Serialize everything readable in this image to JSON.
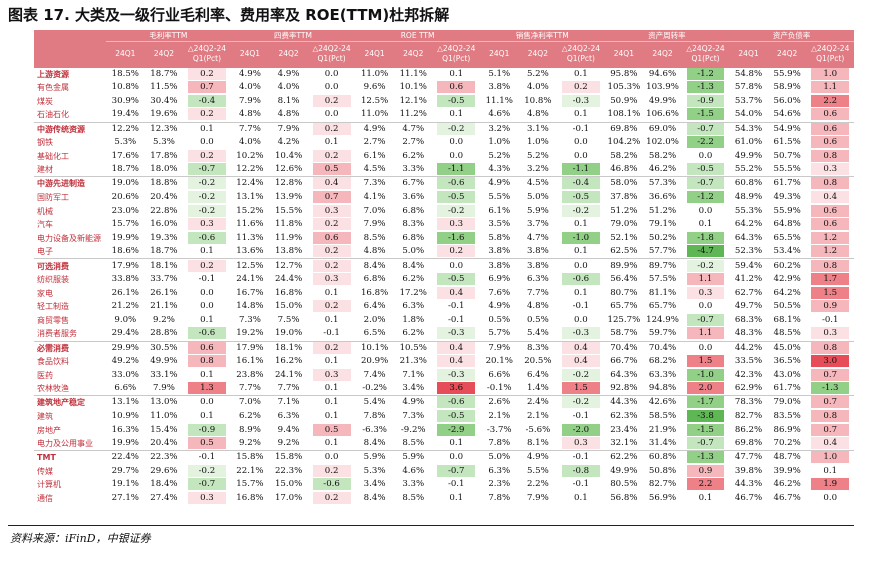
{
  "title": "图表 17. 大类及一级行业毛利率、费用率及 ROE(TTM)杜邦拆解",
  "source": "资料来源：iFinD，中银证券",
  "header": {
    "groups": [
      "毛利率TTM",
      "四费率TTM",
      "ROE TTM",
      "销售净利率TTM",
      "资产周转率",
      "资产负债率"
    ],
    "sub": [
      "24Q1",
      "24Q2",
      "△24Q2-24Q1(Pct)"
    ]
  },
  "sections": [
    {
      "rows": [
        {
          "label": "上游资源",
          "v": [
            "18.5%",
            "18.7%",
            "0.2",
            "4.9%",
            "4.9%",
            "0.0",
            "11.0%",
            "11.1%",
            "0.1",
            "5.1%",
            "5.2%",
            "0.1",
            "95.8%",
            "94.6%",
            "-1.2",
            "54.8%",
            "55.9%",
            "1.0"
          ]
        },
        {
          "label": "有色金属",
          "v": [
            "10.8%",
            "11.5%",
            "0.7",
            "4.0%",
            "4.0%",
            "0.0",
            "9.6%",
            "10.1%",
            "0.6",
            "3.8%",
            "4.0%",
            "0.2",
            "105.3%",
            "103.9%",
            "-1.3",
            "57.8%",
            "58.9%",
            "1.1"
          ]
        },
        {
          "label": "煤炭",
          "v": [
            "30.9%",
            "30.4%",
            "-0.4",
            "7.9%",
            "8.1%",
            "0.2",
            "12.5%",
            "12.1%",
            "-0.5",
            "11.1%",
            "10.8%",
            "-0.3",
            "50.9%",
            "49.9%",
            "-0.9",
            "53.7%",
            "56.0%",
            "2.2"
          ]
        },
        {
          "label": "石油石化",
          "v": [
            "19.4%",
            "19.6%",
            "0.2",
            "4.8%",
            "4.8%",
            "0.0",
            "11.0%",
            "11.2%",
            "0.1",
            "4.6%",
            "4.8%",
            "0.1",
            "108.1%",
            "106.6%",
            "-1.5",
            "54.0%",
            "54.6%",
            "0.6"
          ]
        }
      ]
    },
    {
      "rows": [
        {
          "label": "中游传统资源",
          "v": [
            "12.2%",
            "12.3%",
            "0.1",
            "7.7%",
            "7.9%",
            "0.2",
            "4.9%",
            "4.7%",
            "-0.2",
            "3.2%",
            "3.1%",
            "-0.1",
            "69.8%",
            "69.0%",
            "-0.7",
            "54.3%",
            "54.9%",
            "0.6"
          ]
        },
        {
          "label": "钢铁",
          "v": [
            "5.3%",
            "5.3%",
            "0.0",
            "4.0%",
            "4.2%",
            "0.1",
            "2.7%",
            "2.7%",
            "0.0",
            "1.0%",
            "1.0%",
            "0.0",
            "104.2%",
            "102.0%",
            "-2.2",
            "61.0%",
            "61.5%",
            "0.6"
          ]
        },
        {
          "label": "基础化工",
          "v": [
            "17.6%",
            "17.8%",
            "0.2",
            "10.2%",
            "10.4%",
            "0.2",
            "6.1%",
            "6.2%",
            "0.0",
            "5.2%",
            "5.2%",
            "0.0",
            "58.2%",
            "58.2%",
            "0.0",
            "49.9%",
            "50.7%",
            "0.8"
          ]
        },
        {
          "label": "建材",
          "v": [
            "18.7%",
            "18.0%",
            "-0.7",
            "12.2%",
            "12.6%",
            "0.5",
            "4.5%",
            "3.3%",
            "-1.1",
            "4.3%",
            "3.2%",
            "-1.1",
            "46.8%",
            "46.2%",
            "-0.5",
            "55.2%",
            "55.5%",
            "0.3"
          ]
        }
      ]
    },
    {
      "rows": [
        {
          "label": "中游先进制造",
          "v": [
            "19.0%",
            "18.8%",
            "-0.2",
            "12.4%",
            "12.8%",
            "0.4",
            "7.3%",
            "6.7%",
            "-0.6",
            "4.9%",
            "4.5%",
            "-0.4",
            "58.0%",
            "57.3%",
            "-0.7",
            "60.8%",
            "61.7%",
            "0.8"
          ]
        },
        {
          "label": "国防军工",
          "v": [
            "20.6%",
            "20.4%",
            "-0.2",
            "13.1%",
            "13.9%",
            "0.7",
            "4.1%",
            "3.6%",
            "-0.5",
            "5.5%",
            "5.0%",
            "-0.5",
            "37.8%",
            "36.6%",
            "-1.2",
            "48.9%",
            "49.3%",
            "0.4"
          ]
        },
        {
          "label": "机械",
          "v": [
            "23.0%",
            "22.8%",
            "-0.2",
            "15.2%",
            "15.5%",
            "0.3",
            "7.0%",
            "6.8%",
            "-0.2",
            "6.1%",
            "5.9%",
            "-0.2",
            "51.2%",
            "51.2%",
            "0.0",
            "55.3%",
            "55.9%",
            "0.6"
          ]
        },
        {
          "label": "汽车",
          "v": [
            "15.7%",
            "16.0%",
            "0.3",
            "11.6%",
            "11.8%",
            "0.2",
            "7.9%",
            "8.3%",
            "0.3",
            "3.5%",
            "3.7%",
            "0.1",
            "79.0%",
            "79.1%",
            "0.1",
            "64.2%",
            "64.8%",
            "0.6"
          ]
        },
        {
          "label": "电力设备及新能源",
          "v": [
            "19.9%",
            "19.3%",
            "-0.6",
            "11.3%",
            "11.9%",
            "0.6",
            "8.5%",
            "6.8%",
            "-1.6",
            "5.8%",
            "4.7%",
            "-1.0",
            "52.1%",
            "50.2%",
            "-1.8",
            "64.3%",
            "65.5%",
            "1.2"
          ]
        },
        {
          "label": "电子",
          "v": [
            "18.6%",
            "18.7%",
            "0.1",
            "13.6%",
            "13.8%",
            "0.2",
            "4.8%",
            "5.0%",
            "0.2",
            "3.8%",
            "3.8%",
            "0.1",
            "62.5%",
            "57.7%",
            "-4.7",
            "52.3%",
            "53.4%",
            "1.2"
          ]
        }
      ]
    },
    {
      "rows": [
        {
          "label": "可选消费",
          "v": [
            "17.9%",
            "18.1%",
            "0.2",
            "12.5%",
            "12.7%",
            "0.2",
            "8.4%",
            "8.4%",
            "0.0",
            "3.8%",
            "3.8%",
            "0.0",
            "89.9%",
            "89.7%",
            "-0.2",
            "59.4%",
            "60.2%",
            "0.8"
          ]
        },
        {
          "label": "纺织服装",
          "v": [
            "33.8%",
            "33.7%",
            "-0.1",
            "24.1%",
            "24.4%",
            "0.3",
            "6.8%",
            "6.2%",
            "-0.5",
            "6.9%",
            "6.3%",
            "-0.6",
            "56.4%",
            "57.5%",
            "1.1",
            "41.2%",
            "42.9%",
            "1.7"
          ]
        },
        {
          "label": "家电",
          "v": [
            "26.1%",
            "26.1%",
            "0.0",
            "16.7%",
            "16.8%",
            "0.1",
            "16.8%",
            "17.2%",
            "0.4",
            "7.6%",
            "7.7%",
            "0.1",
            "80.7%",
            "81.1%",
            "0.3",
            "62.7%",
            "64.2%",
            "1.5"
          ]
        },
        {
          "label": "轻工制造",
          "v": [
            "21.2%",
            "21.1%",
            "0.0",
            "14.8%",
            "15.0%",
            "0.2",
            "6.4%",
            "6.3%",
            "-0.1",
            "4.9%",
            "4.8%",
            "-0.1",
            "65.7%",
            "65.7%",
            "0.0",
            "49.7%",
            "50.5%",
            "0.9"
          ]
        },
        {
          "label": "商贸零售",
          "v": [
            "9.0%",
            "9.2%",
            "0.1",
            "7.3%",
            "7.5%",
            "0.1",
            "2.0%",
            "1.8%",
            "-0.1",
            "0.5%",
            "0.5%",
            "0.0",
            "125.7%",
            "124.9%",
            "-0.7",
            "68.3%",
            "68.1%",
            "-0.1"
          ]
        },
        {
          "label": "消费者服务",
          "v": [
            "29.4%",
            "28.8%",
            "-0.6",
            "19.2%",
            "19.0%",
            "-0.1",
            "6.5%",
            "6.2%",
            "-0.3",
            "5.7%",
            "5.4%",
            "-0.3",
            "58.7%",
            "59.7%",
            "1.1",
            "48.3%",
            "48.5%",
            "0.3"
          ]
        }
      ]
    },
    {
      "rows": [
        {
          "label": "必需消费",
          "v": [
            "29.9%",
            "30.5%",
            "0.6",
            "17.9%",
            "18.1%",
            "0.2",
            "10.1%",
            "10.5%",
            "0.4",
            "7.9%",
            "8.3%",
            "0.4",
            "70.4%",
            "70.4%",
            "0.0",
            "44.2%",
            "45.0%",
            "0.8"
          ]
        },
        {
          "label": "食品饮料",
          "v": [
            "49.2%",
            "49.9%",
            "0.8",
            "16.1%",
            "16.2%",
            "0.1",
            "20.9%",
            "21.3%",
            "0.4",
            "20.1%",
            "20.5%",
            "0.4",
            "66.7%",
            "68.2%",
            "1.5",
            "33.5%",
            "36.5%",
            "3.0"
          ]
        },
        {
          "label": "医药",
          "v": [
            "33.0%",
            "33.1%",
            "0.1",
            "23.8%",
            "24.1%",
            "0.3",
            "7.4%",
            "7.1%",
            "-0.3",
            "6.6%",
            "6.4%",
            "-0.2",
            "64.3%",
            "63.3%",
            "-1.0",
            "42.3%",
            "43.0%",
            "0.7"
          ]
        },
        {
          "label": "农林牧渔",
          "v": [
            "6.6%",
            "7.9%",
            "1.3",
            "7.7%",
            "7.7%",
            "0.1",
            "-0.2%",
            "3.4%",
            "3.6",
            "-0.1%",
            "1.4%",
            "1.5",
            "92.8%",
            "94.8%",
            "2.0",
            "62.9%",
            "61.7%",
            "-1.3"
          ]
        }
      ]
    },
    {
      "rows": [
        {
          "label": "建筑地产稳定",
          "v": [
            "13.1%",
            "13.0%",
            "0.0",
            "7.0%",
            "7.1%",
            "0.1",
            "5.4%",
            "4.9%",
            "-0.6",
            "2.6%",
            "2.4%",
            "-0.2",
            "44.3%",
            "42.6%",
            "-1.7",
            "78.3%",
            "79.0%",
            "0.7"
          ]
        },
        {
          "label": "建筑",
          "v": [
            "10.9%",
            "11.0%",
            "0.1",
            "6.2%",
            "6.3%",
            "0.1",
            "7.8%",
            "7.3%",
            "-0.5",
            "2.1%",
            "2.1%",
            "-0.1",
            "62.3%",
            "58.5%",
            "-3.8",
            "82.7%",
            "83.5%",
            "0.8"
          ]
        },
        {
          "label": "房地产",
          "v": [
            "16.3%",
            "15.4%",
            "-0.9",
            "8.9%",
            "9.4%",
            "0.5",
            "-6.3%",
            "-9.2%",
            "-2.9",
            "-3.7%",
            "-5.6%",
            "-2.0",
            "23.4%",
            "21.9%",
            "-1.5",
            "86.2%",
            "86.9%",
            "0.7"
          ]
        },
        {
          "label": "电力及公用事业",
          "v": [
            "19.9%",
            "20.4%",
            "0.5",
            "9.2%",
            "9.2%",
            "0.1",
            "8.4%",
            "8.5%",
            "0.1",
            "7.8%",
            "8.1%",
            "0.3",
            "32.1%",
            "31.4%",
            "-0.7",
            "69.8%",
            "70.2%",
            "0.4"
          ]
        }
      ]
    },
    {
      "rows": [
        {
          "label": "TMT",
          "v": [
            "22.4%",
            "22.3%",
            "-0.1",
            "15.8%",
            "15.8%",
            "0.0",
            "5.9%",
            "5.9%",
            "0.0",
            "5.0%",
            "4.9%",
            "-0.1",
            "62.2%",
            "60.8%",
            "-1.3",
            "47.7%",
            "48.7%",
            "1.0"
          ]
        },
        {
          "label": "传媒",
          "v": [
            "29.7%",
            "29.6%",
            "-0.2",
            "22.1%",
            "22.3%",
            "0.2",
            "5.3%",
            "4.6%",
            "-0.7",
            "6.3%",
            "5.5%",
            "-0.8",
            "49.9%",
            "50.8%",
            "0.9",
            "39.8%",
            "39.9%",
            "0.1"
          ]
        },
        {
          "label": "计算机",
          "v": [
            "19.1%",
            "18.4%",
            "-0.7",
            "15.7%",
            "15.0%",
            "-0.6",
            "3.4%",
            "3.3%",
            "-0.1",
            "2.3%",
            "2.2%",
            "-0.1",
            "80.5%",
            "82.7%",
            "2.2",
            "44.3%",
            "46.2%",
            "1.9"
          ]
        },
        {
          "label": "通信",
          "v": [
            "27.1%",
            "27.4%",
            "0.3",
            "16.8%",
            "17.0%",
            "0.2",
            "8.4%",
            "8.5%",
            "0.1",
            "7.8%",
            "7.9%",
            "0.1",
            "56.8%",
            "56.9%",
            "0.1",
            "46.7%",
            "46.7%",
            "0.0"
          ]
        }
      ]
    }
  ]
}
